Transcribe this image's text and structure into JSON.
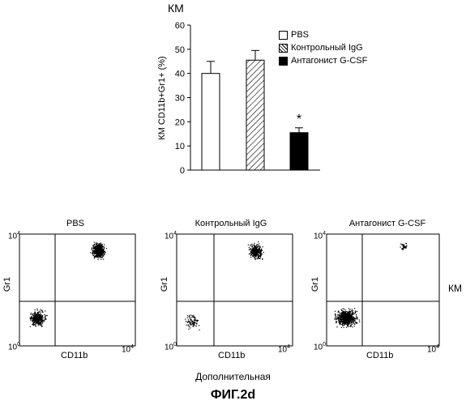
{
  "header": {
    "title": "КМ"
  },
  "chart_data": [
    {
      "type": "bar",
      "title": "КМ",
      "ylabel": "КМ CD11b+Gr1+ (%)",
      "ylim": [
        0,
        60
      ],
      "yticks": [
        "0",
        "10",
        "20",
        "30",
        "40",
        "50",
        "60"
      ],
      "categories": [
        "PBS",
        "Контрольный IgG",
        "Антагонист G-CSF"
      ],
      "values": [
        40,
        45.5,
        15.5
      ],
      "errors": [
        5,
        4,
        2
      ],
      "fills": [
        "white",
        "hatch",
        "black"
      ],
      "annotation": "*",
      "legend": {
        "placement": "top-right",
        "entries": [
          "PBS",
          "Контрольный IgG",
          "Антагонист G-CSF"
        ]
      }
    },
    {
      "type": "scatter",
      "panels": [
        {
          "title": "PBS",
          "xlabel": "CD11b",
          "ylabel": "Gr1"
        },
        {
          "title": "Контрольный IgG",
          "xlabel": "CD11b",
          "ylabel": "Gr1"
        },
        {
          "title": "Антагонист G-CSF",
          "xlabel": "CD11b",
          "ylabel": "Gr1"
        }
      ],
      "tick_base": "10",
      "tick_min_exp": "0",
      "tick_max_exp": "4",
      "side_label": "КМ",
      "bottom_label": "Дополнительная"
    }
  ],
  "figure": {
    "label": "ФИГ.2d"
  },
  "colors": {
    "ink": "#000000",
    "background": "#ffffff"
  }
}
